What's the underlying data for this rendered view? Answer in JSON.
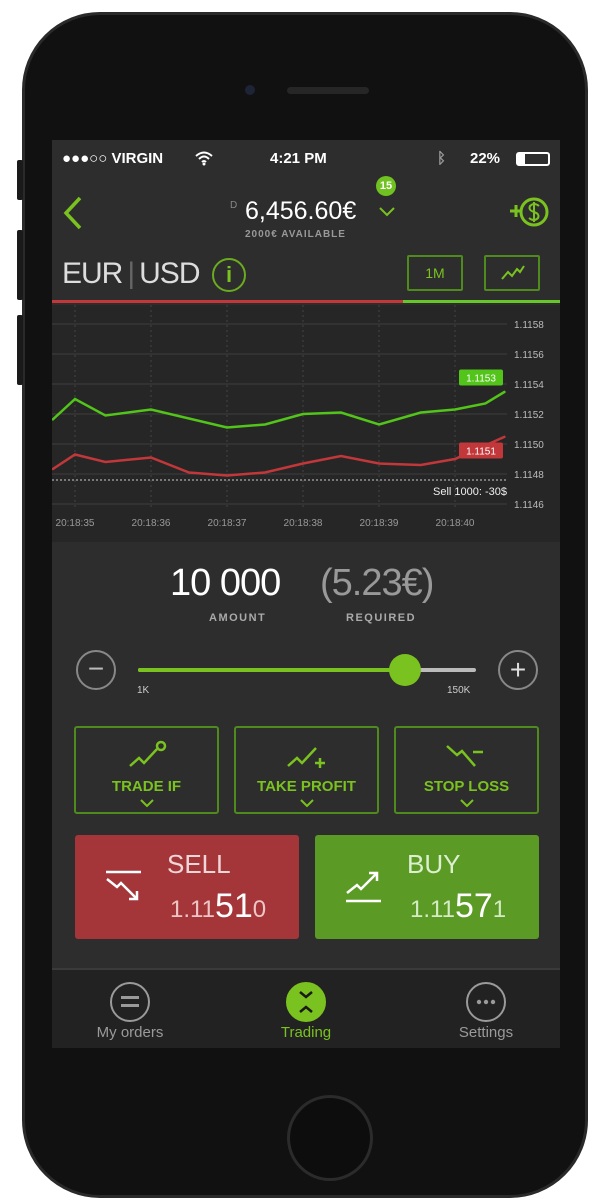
{
  "status_bar": {
    "carrier": "●●●○○ VIRGIN",
    "time": "4:21 PM",
    "battery": "22%",
    "battery_level": 0.22
  },
  "header": {
    "balance_prefix": "D",
    "balance": "6,456.60€",
    "badge": "15",
    "available": "2000€ AVAILABLE",
    "icons": [
      "chevron-left-icon",
      "chevron-down-icon",
      "add-funds-icon"
    ]
  },
  "instrument": {
    "base": "EUR",
    "quote": "USD",
    "timeframe": "1M",
    "chart_type_icon": "line-chart-icon",
    "sentiment_sell_fraction": 0.69
  },
  "colors": {
    "accent": "#7ac21f",
    "sell": "#a4363a",
    "buy": "#5a9a25",
    "sell_line": "#c1373a",
    "buy_line": "#52c41a"
  },
  "chart_data": {
    "type": "line",
    "x_ticks": [
      "20:18:35",
      "20:18:36",
      "20:18:37",
      "20:18:38",
      "20:18:39",
      "20:18:40"
    ],
    "y_ticks": [
      "1.1146",
      "1.1148",
      "1.1150",
      "1.1152",
      "1.1154",
      "1.1156",
      "1.1158"
    ],
    "ylim": [
      1.1145,
      1.1159
    ],
    "grid": true,
    "series": [
      {
        "color": "#52c41a",
        "x_seconds": [
          34.7,
          35,
          35.4,
          36,
          37,
          37.5,
          38,
          38.5,
          39,
          39.55,
          40,
          40.4,
          40.66
        ],
        "values": [
          1.11516,
          1.1153,
          1.11519,
          1.11523,
          1.11511,
          1.11513,
          1.1152,
          1.11521,
          1.11513,
          1.11521,
          1.11523,
          1.11527,
          1.11535
        ],
        "marker": "1.1153"
      },
      {
        "color": "#c1373a",
        "x_seconds": [
          34.7,
          35,
          35.4,
          36,
          36.5,
          37,
          37.5,
          38,
          38.5,
          39,
          39.55,
          40,
          40.66
        ],
        "values": [
          1.11483,
          1.11493,
          1.11488,
          1.11491,
          1.11481,
          1.11479,
          1.11481,
          1.11487,
          1.11492,
          1.11487,
          1.11486,
          1.1149,
          1.11505
        ],
        "marker": "1.1151"
      }
    ],
    "reference_line": {
      "value": 1.11476,
      "label": "Sell 1000: -30$"
    }
  },
  "amount": {
    "value": "10 000",
    "label": "AMOUNT",
    "required": "(5.23€)",
    "required_label": "REQUIRED"
  },
  "slider": {
    "min_label": "1K",
    "max_label": "150K",
    "fraction": 0.79
  },
  "options": [
    {
      "label": "TRADE IF",
      "icon": "trade-if-icon"
    },
    {
      "label": "TAKE PROFIT",
      "icon": "take-profit-icon"
    },
    {
      "label": "STOP LOSS",
      "icon": "stop-loss-icon"
    }
  ],
  "sell": {
    "label": "SELL",
    "price_prefix": "1.11",
    "price_big": "51",
    "price_suffix": "0"
  },
  "buy": {
    "label": "BUY",
    "price_prefix": "1.11",
    "price_big": "57",
    "price_suffix": "1"
  },
  "tabs": [
    {
      "label": "My orders",
      "icon": "list-icon"
    },
    {
      "label": "Trading",
      "icon": "trading-icon",
      "active": true
    },
    {
      "label": "Settings",
      "icon": "more-icon"
    }
  ]
}
